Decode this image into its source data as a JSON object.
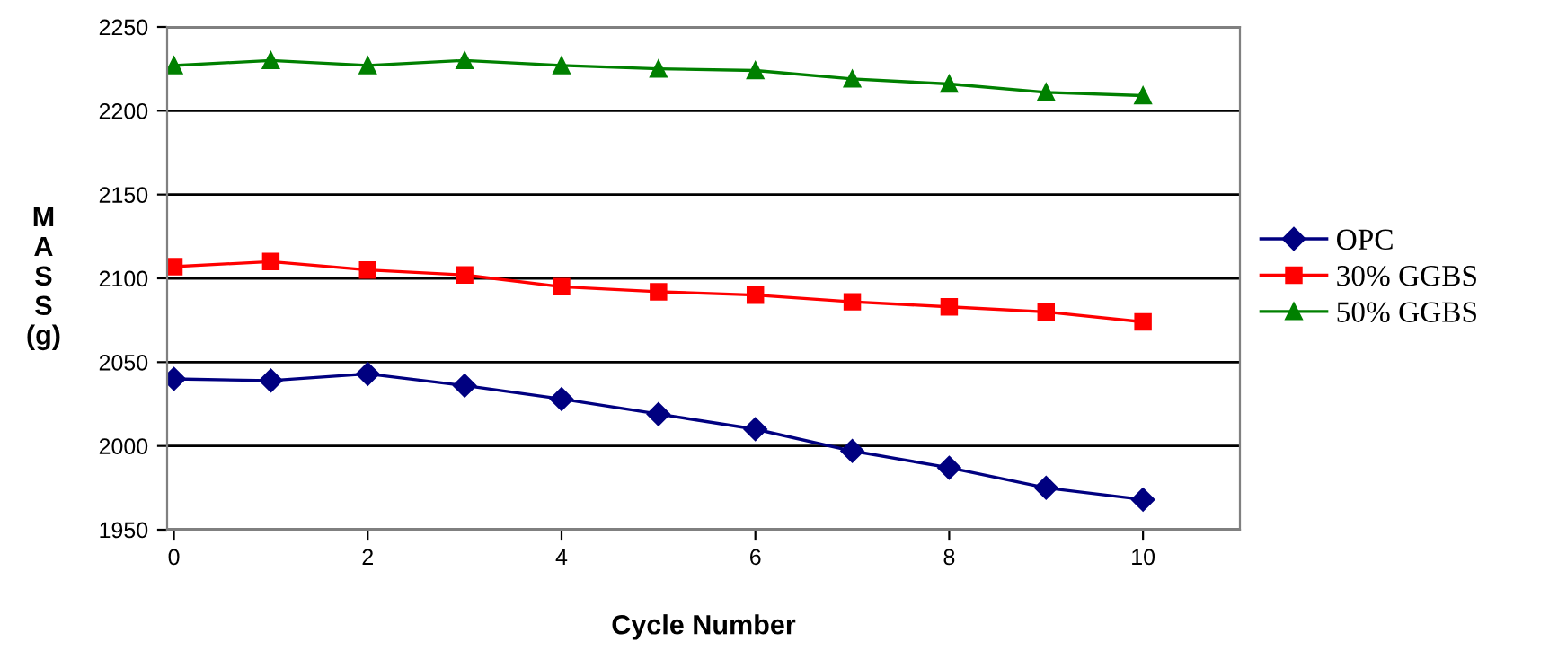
{
  "chart_data": {
    "type": "line",
    "xlabel": "Cycle Number",
    "ylabel": "M\nA\nS\nS\n(g)",
    "x": [
      0,
      1,
      2,
      3,
      4,
      5,
      6,
      7,
      8,
      9,
      10
    ],
    "series": [
      {
        "name": "OPC",
        "color": "#000080",
        "marker": "diamond",
        "values": [
          2040,
          2039,
          2043,
          2036,
          2028,
          2019,
          2010,
          1997,
          1987,
          1975,
          1968
        ]
      },
      {
        "name": "30% GGBS",
        "color": "#ff0000",
        "marker": "square",
        "values": [
          2107,
          2110,
          2105,
          2102,
          2095,
          2092,
          2090,
          2086,
          2083,
          2080,
          2074
        ]
      },
      {
        "name": "50% GGBS",
        "color": "#008000",
        "marker": "triangle",
        "values": [
          2227,
          2230,
          2227,
          2230,
          2227,
          2225,
          2224,
          2219,
          2216,
          2211,
          2209
        ]
      }
    ],
    "xlim": [
      -0.07,
      11
    ],
    "xticks": [
      0,
      2,
      4,
      6,
      8,
      10
    ],
    "ylim": [
      1950,
      2250
    ],
    "yticks": [
      1950,
      2000,
      2050,
      2100,
      2150,
      2200,
      2250
    ],
    "grid": "y",
    "legend": "right"
  }
}
